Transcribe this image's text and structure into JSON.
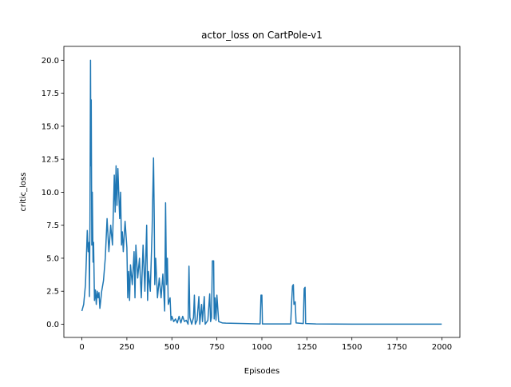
{
  "chart_data": {
    "type": "line",
    "title": "actor_loss on CartPole-v1",
    "x_label": "Episodes",
    "y_label": "critic_loss",
    "color": "#1f77b4",
    "xlim": [
      -100,
      2100
    ],
    "ylim": [
      -1.0,
      21.05
    ],
    "xticks": [
      0,
      250,
      500,
      750,
      1000,
      1250,
      1500,
      1750,
      2000
    ],
    "yticks": [
      {
        "value": 0,
        "label": "0.0"
      },
      2.5,
      {
        "value": 5,
        "label": "5.0"
      },
      7.5,
      {
        "value": 10,
        "label": "10.0"
      },
      12.5,
      {
        "value": 15,
        "label": "15.0"
      },
      17.5,
      {
        "value": 20,
        "label": "20.0"
      }
    ],
    "x": [
      0,
      10,
      20,
      25,
      30,
      35,
      40,
      42,
      45,
      48,
      50,
      52,
      55,
      58,
      62,
      65,
      70,
      75,
      80,
      85,
      90,
      95,
      100,
      110,
      120,
      130,
      140,
      150,
      160,
      170,
      180,
      185,
      190,
      195,
      200,
      210,
      215,
      220,
      225,
      230,
      240,
      250,
      255,
      260,
      265,
      270,
      280,
      290,
      295,
      300,
      310,
      320,
      330,
      340,
      350,
      360,
      365,
      370,
      380,
      390,
      398,
      402,
      405,
      410,
      420,
      430,
      440,
      450,
      460,
      465,
      470,
      475,
      480,
      490,
      495,
      500,
      510,
      520,
      530,
      540,
      550,
      560,
      570,
      580,
      590,
      595,
      600,
      610,
      620,
      625,
      630,
      640,
      650,
      655,
      665,
      670,
      680,
      685,
      700,
      710,
      715,
      720,
      725,
      732,
      735,
      740,
      745,
      750,
      760,
      780,
      800,
      900,
      990,
      995,
      1000,
      1003,
      1100,
      1160,
      1165,
      1170,
      1175,
      1178,
      1185,
      1190,
      1230,
      1235,
      1240,
      1243,
      1300,
      1500,
      1750,
      1999
    ],
    "values": [
      1.0,
      1.5,
      3,
      5,
      7.1,
      5.5,
      6.2,
      2.1,
      8,
      20.0,
      12,
      17,
      6,
      10,
      4.7,
      6.2,
      1.8,
      2.6,
      1.5,
      2.5,
      2.0,
      2.4,
      1.2,
      2.5,
      3.3,
      5,
      8,
      5.5,
      7.5,
      6,
      11.3,
      8.5,
      12,
      9,
      11.8,
      8,
      10,
      6,
      7,
      5.5,
      7.8,
      5.8,
      2,
      4,
      1.8,
      4.5,
      3,
      5.5,
      2,
      6,
      3.5,
      5,
      2,
      6,
      2.5,
      7.5,
      1.8,
      4,
      2.5,
      7,
      12.6,
      8,
      3,
      5,
      2,
      3.5,
      2,
      3.8,
      1,
      9.2,
      3,
      5,
      1.5,
      2,
      0.3,
      0.6,
      0.2,
      0.4,
      0.1,
      0.6,
      0.1,
      0.6,
      0.2,
      0.3,
      0,
      4.4,
      0.5,
      0,
      0.5,
      2.2,
      0,
      0.3,
      2.1,
      0,
      1.5,
      0.2,
      2.1,
      0,
      0.3,
      2.3,
      0.2,
      0.5,
      4.8,
      4.8,
      0.4,
      2,
      0.3,
      2.2,
      0.2,
      0.1,
      0.08,
      0.05,
      0.02,
      2.2,
      2.2,
      0.02,
      0.02,
      0.02,
      1.6,
      2.9,
      3.0,
      1.5,
      1.7,
      0.1,
      0.05,
      2.7,
      2.8,
      0.05,
      0.02,
      0.01,
      0.01,
      0.01
    ]
  }
}
